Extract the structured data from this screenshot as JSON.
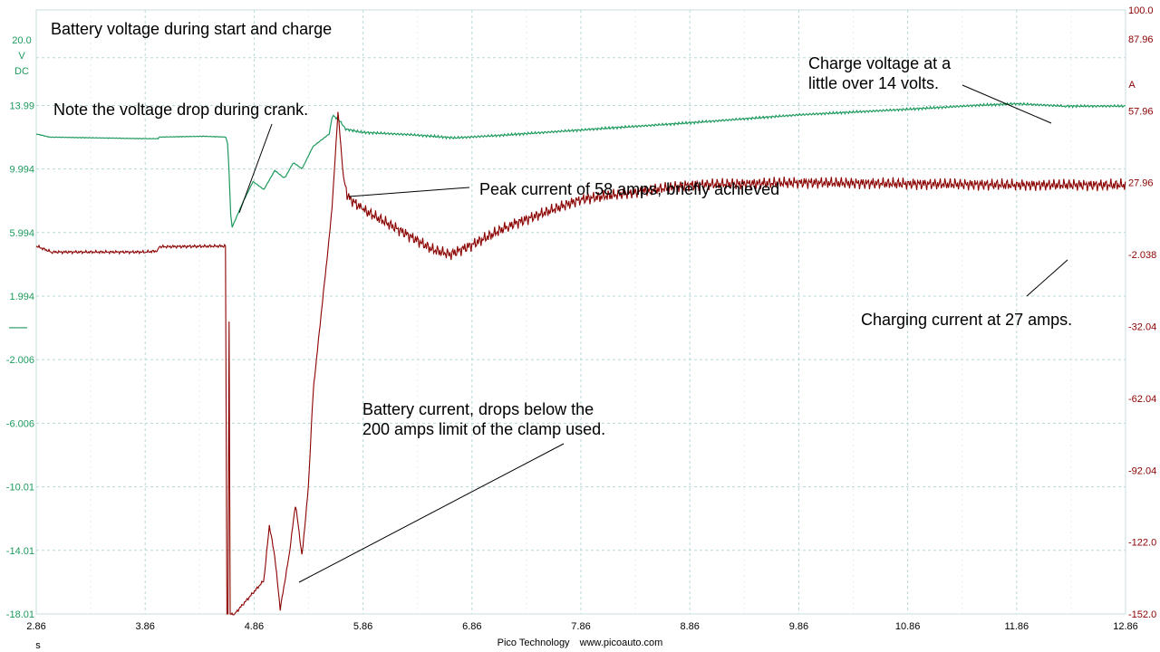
{
  "colors": {
    "voltage": "#1e9a5e",
    "current": "#8b0000",
    "grid": "#b8d8d8",
    "text": "#000000"
  },
  "chart_data": {
    "type": "line",
    "title": "Battery voltage during start and charge",
    "x_axis": {
      "unit": "s",
      "range": [
        2.86,
        12.86
      ],
      "ticks": [
        "2.86",
        "3.86",
        "4.86",
        "5.86",
        "6.86",
        "7.86",
        "8.86",
        "9.86",
        "10.86",
        "11.86",
        "12.86"
      ]
    },
    "y_left": {
      "unit_lines": [
        "20.0",
        "V",
        "DC"
      ],
      "range": [
        -18.01,
        20.0
      ],
      "ticks": [
        "13.99",
        "9.994",
        "5.994",
        "1.994",
        "-2.006",
        "-6.006",
        "-10.01",
        "-14.01",
        "-18.01"
      ]
    },
    "y_right": {
      "unit": "A",
      "top_label": "100.0",
      "range": [
        -152.0,
        100.0
      ],
      "ticks": [
        "87.96",
        "57.96",
        "27.96",
        "-2.038",
        "-32.04",
        "-62.04",
        "-92.04",
        "-122.0",
        "-152.0"
      ]
    },
    "grid": true,
    "series": [
      {
        "axis": "left",
        "points": [
          [
            2.86,
            12.2
          ],
          [
            2.98,
            12.0
          ],
          [
            3.86,
            11.9
          ],
          [
            3.98,
            11.9
          ],
          [
            3.99,
            12.0
          ],
          [
            4.4,
            12.05
          ],
          [
            4.6,
            12.0
          ],
          [
            4.62,
            11.5
          ],
          [
            4.65,
            6.2
          ],
          [
            4.75,
            7.8
          ],
          [
            4.85,
            9.2
          ],
          [
            4.95,
            8.7
          ],
          [
            5.05,
            9.9
          ],
          [
            5.14,
            9.4
          ],
          [
            5.22,
            10.4
          ],
          [
            5.3,
            10.0
          ],
          [
            5.4,
            11.4
          ],
          [
            5.55,
            12.2
          ],
          [
            5.58,
            13.4
          ],
          [
            5.65,
            13.0
          ],
          [
            5.7,
            12.5
          ],
          [
            5.85,
            12.3
          ],
          [
            6.3,
            12.15
          ],
          [
            6.7,
            11.95
          ],
          [
            7.1,
            12.1
          ],
          [
            7.86,
            12.45
          ],
          [
            8.86,
            12.9
          ],
          [
            9.86,
            13.4
          ],
          [
            10.86,
            13.75
          ],
          [
            11.5,
            14.0
          ],
          [
            11.86,
            14.1
          ],
          [
            12.3,
            13.95
          ],
          [
            12.86,
            13.95
          ]
        ]
      },
      {
        "axis": "right",
        "points": [
          [
            2.86,
            1.5
          ],
          [
            3.0,
            -1.0
          ],
          [
            3.86,
            -1.0
          ],
          [
            3.98,
            -0.5
          ],
          [
            3.99,
            1.2
          ],
          [
            4.6,
            1.5
          ],
          [
            4.61,
            -152.0
          ],
          [
            4.62,
            -152.0
          ],
          [
            4.63,
            -30.0
          ],
          [
            4.64,
            -152.0
          ],
          [
            4.68,
            -152.0
          ],
          [
            4.95,
            -138.0
          ],
          [
            5.0,
            -115.0
          ],
          [
            5.05,
            -128.0
          ],
          [
            5.1,
            -150.0
          ],
          [
            5.18,
            -128.0
          ],
          [
            5.24,
            -106.0
          ],
          [
            5.3,
            -128.0
          ],
          [
            5.36,
            -98.0
          ],
          [
            5.4,
            -60.0
          ],
          [
            5.48,
            -25.0
          ],
          [
            5.55,
            5.0
          ],
          [
            5.58,
            20.0
          ],
          [
            5.63,
            57.5
          ],
          [
            5.68,
            30.0
          ],
          [
            5.72,
            22.0
          ],
          [
            5.85,
            17.0
          ],
          [
            6.2,
            8.0
          ],
          [
            6.5,
            0.0
          ],
          [
            6.66,
            -2.0
          ],
          [
            6.86,
            2.0
          ],
          [
            7.2,
            10.0
          ],
          [
            7.86,
            21.0
          ],
          [
            8.86,
            27.0
          ],
          [
            9.86,
            28.0
          ],
          [
            10.86,
            27.5
          ],
          [
            11.86,
            27.0
          ],
          [
            12.86,
            27.0
          ]
        ]
      }
    ]
  },
  "annotations": [
    {
      "text": "Note the voltage drop during crank."
    },
    {
      "text": "Peak current of 58 amps, briefly achieved"
    },
    {
      "text": "Charge voltage at a\nlittle over 14 volts."
    },
    {
      "text": "Charging current at 27 amps."
    },
    {
      "text": "Battery current, drops below the\n200 amps limit of the clamp used."
    }
  ],
  "footer": {
    "brand": "Pico Technology",
    "url": "www.picoauto.com"
  }
}
